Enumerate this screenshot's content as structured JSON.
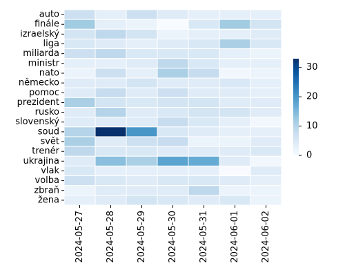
{
  "chart_data": {
    "type": "heatmap",
    "title": "",
    "xlabel": "",
    "ylabel": "",
    "x": [
      "2024-05-27",
      "2024-05-28",
      "2024-05-29",
      "2024-05-30",
      "2024-05-31",
      "2024-06-01",
      "2024-06-02"
    ],
    "y": [
      "auto",
      "finále",
      "izraelský",
      "liga",
      "miliarda",
      "ministr",
      "nato",
      "německo",
      "pomoc",
      "prezident",
      "rusko",
      "slovenský",
      "soud",
      "svět",
      "trenér",
      "ukrajina",
      "vlak",
      "volba",
      "zbraň",
      "žena"
    ],
    "values": [
      [
        7,
        3,
        7,
        4,
        3,
        3,
        3
      ],
      [
        12,
        3,
        2,
        0,
        5,
        12,
        6
      ],
      [
        6,
        9,
        6,
        2,
        3,
        3,
        4
      ],
      [
        5,
        4,
        3,
        4,
        5,
        11,
        5
      ],
      [
        7,
        9,
        5,
        5,
        5,
        3,
        2
      ],
      [
        3,
        3,
        4,
        9,
        5,
        3,
        3
      ],
      [
        2,
        7,
        3,
        11,
        8,
        1,
        2
      ],
      [
        4,
        4,
        6,
        4,
        4,
        5,
        3
      ],
      [
        4,
        8,
        4,
        7,
        4,
        4,
        3
      ],
      [
        11,
        6,
        5,
        6,
        6,
        4,
        4
      ],
      [
        4,
        10,
        4,
        5,
        6,
        6,
        4
      ],
      [
        4,
        4,
        4,
        8,
        5,
        3,
        1
      ],
      [
        10,
        33,
        20,
        5,
        4,
        3,
        3
      ],
      [
        11,
        4,
        7,
        8,
        2,
        2,
        4
      ],
      [
        9,
        5,
        5,
        4,
        4,
        4,
        5
      ],
      [
        4,
        14,
        11,
        18,
        17,
        4,
        1
      ],
      [
        5,
        3,
        3,
        3,
        3,
        0,
        4
      ],
      [
        7,
        5,
        4,
        5,
        5,
        4,
        3
      ],
      [
        2,
        4,
        4,
        4,
        9,
        2,
        2
      ],
      [
        3,
        4,
        6,
        5,
        4,
        5,
        2
      ]
    ],
    "vmin": 0,
    "vmax": 33,
    "colorbar_ticks": [
      0,
      10,
      20,
      30
    ],
    "colormap": [
      "#f7fbff",
      "#deebf7",
      "#c6dbef",
      "#9ecae1",
      "#6baed6",
      "#4292c6",
      "#2171b5",
      "#08519c",
      "#08306b"
    ],
    "grid": "white cell borders",
    "legend": "colorbar at right"
  }
}
